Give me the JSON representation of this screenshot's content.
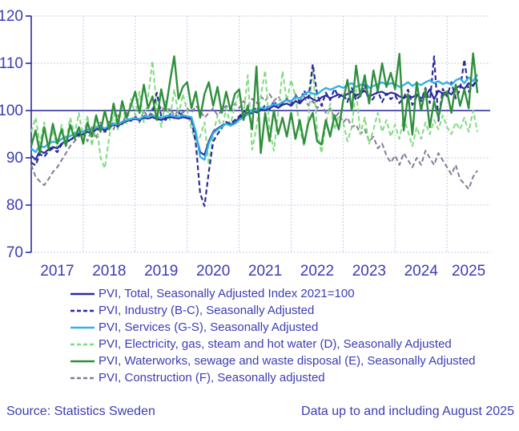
{
  "footer": {
    "source": "Source: Statistics Sweden",
    "note": "Data up to and including August 2025"
  },
  "colors": {
    "text": "#3c3cb4",
    "grid_light": "#c9c9ea",
    "axis": "#2b2b9e",
    "reference_line": "#2020a0",
    "background": "#ffffff"
  },
  "chart_data": {
    "type": "line",
    "title": "",
    "frequency": "monthly",
    "x_start": "2017-01",
    "x_end": "2025-08",
    "x_tick_labels": [
      "2017",
      "2018",
      "2019",
      "2020",
      "2021",
      "2022",
      "2023",
      "2024",
      "2025"
    ],
    "y_ticks": [
      70,
      80,
      90,
      100,
      110,
      120
    ],
    "ylim": [
      70,
      120
    ],
    "reference_line_y": 100,
    "grid": "dotted",
    "legend_position": "below",
    "series": [
      {
        "name": "PVI, Total, Seasonally Adjusted Index 2021=100",
        "color": "#2b2b9e",
        "dash": "solid",
        "width": 2.2,
        "values": [
          90.5,
          89.6,
          91.5,
          91.0,
          91.8,
          92.3,
          92.0,
          93.0,
          93.5,
          93.8,
          94.5,
          94.8,
          95.0,
          95.5,
          95.2,
          96.0,
          96.3,
          95.8,
          96.5,
          97.0,
          96.8,
          97.3,
          97.8,
          98.0,
          98.2,
          98.0,
          98.5,
          98.3,
          98.6,
          98.2,
          98.0,
          98.4,
          98.6,
          98.5,
          98.3,
          98.6,
          98.4,
          98.2,
          95.0,
          91.2,
          90.6,
          93.5,
          95.5,
          96.2,
          96.8,
          97.2,
          97.0,
          97.4,
          98.5,
          99.0,
          99.5,
          100.0,
          99.6,
          100.2,
          100.0,
          100.4,
          101.0,
          100.6,
          101.2,
          101.5,
          101.0,
          102.0,
          101.5,
          102.5,
          103.0,
          102.4,
          102.0,
          102.8,
          103.2,
          102.6,
          103.0,
          103.4,
          103.0,
          103.5,
          104.0,
          103.2,
          103.6,
          104.2,
          103.0,
          103.4,
          103.8,
          104.0,
          103.4,
          103.8,
          103.6,
          103.0,
          102.6,
          103.2,
          102.8,
          103.4,
          102.6,
          103.0,
          104.5,
          102.4,
          104.2,
          103.6,
          104.0,
          103.4,
          104.8,
          105.2,
          104.6,
          105.8,
          105.2,
          106.4
        ]
      },
      {
        "name": "PVI, Industry (B-C), Seasonally Adjusted",
        "color": "#2b2b9e",
        "dash": "6,3.5",
        "width": 2.2,
        "values": [
          89.0,
          88.4,
          90.8,
          90.2,
          91.4,
          92.0,
          91.2,
          92.8,
          93.4,
          93.6,
          94.6,
          95.2,
          94.8,
          95.8,
          95.0,
          96.2,
          96.8,
          95.6,
          96.6,
          97.4,
          96.6,
          97.6,
          98.2,
          97.8,
          98.6,
          97.8,
          99.0,
          98.2,
          99.4,
          103.8,
          98.8,
          98.0,
          99.2,
          98.4,
          99.6,
          99.0,
          98.6,
          98.0,
          93.0,
          82.5,
          79.8,
          87.0,
          93.5,
          95.0,
          96.4,
          97.6,
          97.2,
          98.0,
          98.8,
          99.6,
          100.4,
          99.2,
          100.8,
          99.8,
          101.2,
          100.2,
          102.0,
          100.8,
          101.6,
          102.4,
          101.2,
          103.0,
          101.8,
          104.2,
          102.6,
          109.8,
          103.4,
          101.0,
          103.8,
          102.2,
          104.6,
          102.8,
          103.6,
          101.8,
          104.8,
          102.2,
          103.2,
          105.4,
          101.6,
          102.6,
          104.2,
          101.8,
          103.6,
          102.4,
          103.2,
          101.6,
          102.8,
          104.4,
          101.2,
          103.0,
          102.0,
          104.8,
          101.6,
          111.5,
          97.8,
          104.6,
          103.0,
          106.0,
          102.6,
          104.4,
          110.8,
          104.0,
          105.4,
          106.6
        ]
      },
      {
        "name": "PVI, Services (G-S), Seasonally Adjusted",
        "color": "#33b1e6",
        "dash": "solid",
        "width": 2.4,
        "values": [
          92.0,
          91.2,
          92.6,
          92.2,
          93.0,
          93.4,
          93.2,
          94.0,
          94.4,
          94.6,
          95.2,
          95.4,
          95.6,
          96.0,
          95.8,
          96.4,
          96.6,
          96.2,
          96.8,
          97.2,
          97.0,
          97.6,
          98.0,
          98.2,
          98.4,
          98.2,
          98.8,
          98.6,
          99.0,
          98.6,
          98.4,
          98.8,
          99.0,
          98.8,
          98.6,
          99.0,
          98.8,
          98.6,
          95.5,
          90.2,
          89.6,
          93.0,
          95.2,
          96.0,
          96.6,
          97.2,
          96.8,
          97.2,
          98.0,
          98.6,
          99.2,
          100.2,
          100.0,
          100.6,
          100.4,
          100.8,
          101.4,
          101.2,
          101.8,
          102.2,
          102.0,
          102.8,
          102.6,
          103.4,
          104.0,
          103.6,
          103.4,
          104.2,
          104.8,
          104.4,
          104.8,
          105.2,
          104.8,
          105.4,
          105.8,
          105.0,
          105.4,
          106.0,
          104.8,
          105.2,
          105.6,
          106.0,
          105.4,
          105.8,
          105.6,
          105.0,
          105.4,
          106.0,
          105.2,
          105.8,
          105.4,
          106.0,
          106.4,
          105.8,
          106.2,
          105.6,
          106.0,
          105.4,
          106.4,
          106.8,
          105.8,
          107.0,
          106.2,
          107.6
        ]
      },
      {
        "name": "PVI, Electricity, gas, steam and hot water (D), Seasonally Adjusted",
        "color": "#7fdc7f",
        "dash": "6,3.5",
        "width": 2.0,
        "values": [
          95.5,
          98.5,
          93.0,
          97.5,
          91.5,
          96.0,
          92.0,
          97.0,
          93.5,
          98.5,
          95.0,
          99.5,
          94.0,
          99.0,
          92.5,
          98.0,
          90.0,
          87.8,
          94.5,
          99.5,
          96.0,
          101.5,
          97.0,
          102.5,
          99.0,
          104.0,
          97.5,
          103.0,
          110.5,
          100.5,
          96.5,
          102.0,
          98.0,
          104.5,
          99.0,
          103.5,
          100.0,
          96.0,
          93.5,
          94.5,
          97.5,
          88.5,
          95.0,
          99.0,
          96.0,
          100.5,
          97.0,
          101.0,
          104.0,
          99.0,
          107.5,
          91.7,
          96.5,
          103.0,
          108.5,
          96.0,
          91.5,
          99.5,
          108.3,
          102.0,
          106.5,
          103.0,
          96.0,
          92.5,
          98.5,
          109.5,
          95.5,
          91.0,
          97.0,
          101.5,
          96.0,
          99.0,
          97.5,
          93.5,
          96.5,
          104.5,
          95.0,
          98.5,
          93.0,
          96.0,
          99.5,
          95.5,
          98.0,
          94.5,
          97.0,
          94.0,
          98.5,
          95.5,
          92.5,
          96.5,
          94.0,
          97.5,
          95.0,
          98.0,
          96.0,
          99.0,
          96.5,
          95.0,
          97.5,
          96.0,
          98.5,
          95.5,
          100.0,
          95.5
        ]
      },
      {
        "name": "PVI, Waterworks, sewage and waste disposal (E), Seasonally Adjusted",
        "color": "#2f8f3c",
        "dash": "solid",
        "width": 2.4,
        "values": [
          92.5,
          95.8,
          91.0,
          96.5,
          92.0,
          97.2,
          93.0,
          96.0,
          92.5,
          97.0,
          94.0,
          96.5,
          93.0,
          97.5,
          94.5,
          99.0,
          95.5,
          100.0,
          96.0,
          101.5,
          97.0,
          102.0,
          98.5,
          101.0,
          104.0,
          99.5,
          105.5,
          100.5,
          103.0,
          98.0,
          104.5,
          100.0,
          106.0,
          111.5,
          102.5,
          105.0,
          106.0,
          100.5,
          104.0,
          98.5,
          103.5,
          106.0,
          101.0,
          105.0,
          99.5,
          104.0,
          100.0,
          103.5,
          104.5,
          98.0,
          101.0,
          96.0,
          109.3,
          91.0,
          99.5,
          93.5,
          100.0,
          95.0,
          98.5,
          94.5,
          99.5,
          94.0,
          98.0,
          93.0,
          97.5,
          99.5,
          93.5,
          92.8,
          98.0,
          94.5,
          99.0,
          96.0,
          102.0,
          106.5,
          100.0,
          109.5,
          103.0,
          107.5,
          101.5,
          108.5,
          104.0,
          110.0,
          105.0,
          108.0,
          104.5,
          112.0,
          95.8,
          103.5,
          94.9,
          106.0,
          100.0,
          104.5,
          96.5,
          102.0,
          98.5,
          103.0,
          104.0,
          99.5,
          105.5,
          101.0,
          104.5,
          100.5,
          112.1,
          103.7
        ]
      },
      {
        "name": "PVI, Construction (F), Seasonally adjusted",
        "color": "#847a99",
        "dash": "6,3.5",
        "width": 2.0,
        "values": [
          88.5,
          86.0,
          85.0,
          84.2,
          85.5,
          87.0,
          88.0,
          89.5,
          91.0,
          92.5,
          93.5,
          94.5,
          95.5,
          93.5,
          96.5,
          94.0,
          97.5,
          95.0,
          98.0,
          96.0,
          99.0,
          97.0,
          99.5,
          98.0,
          99.0,
          97.5,
          100.0,
          98.5,
          100.5,
          99.0,
          101.0,
          99.5,
          100.5,
          99.0,
          100.0,
          99.5,
          100.5,
          99.5,
          101.0,
          100.0,
          98.5,
          99.5,
          100.5,
          99.0,
          100.0,
          101.0,
          100.0,
          101.5,
          100.5,
          102.0,
          101.0,
          102.5,
          101.5,
          103.0,
          102.0,
          103.5,
          102.0,
          103.0,
          101.5,
          102.5,
          101.5,
          103.5,
          102.0,
          103.0,
          101.0,
          102.0,
          100.5,
          101.5,
          99.5,
          100.5,
          98.5,
          99.5,
          97.5,
          98.5,
          96.5,
          97.0,
          95.0,
          96.0,
          93.5,
          94.5,
          92.0,
          93.0,
          90.5,
          89.0,
          90.5,
          88.5,
          91.0,
          89.5,
          88.0,
          90.0,
          88.5,
          91.5,
          90.0,
          88.5,
          91.0,
          89.5,
          88.0,
          86.5,
          88.5,
          85.5,
          84.5,
          83.4,
          86.0,
          87.3
        ]
      }
    ]
  }
}
